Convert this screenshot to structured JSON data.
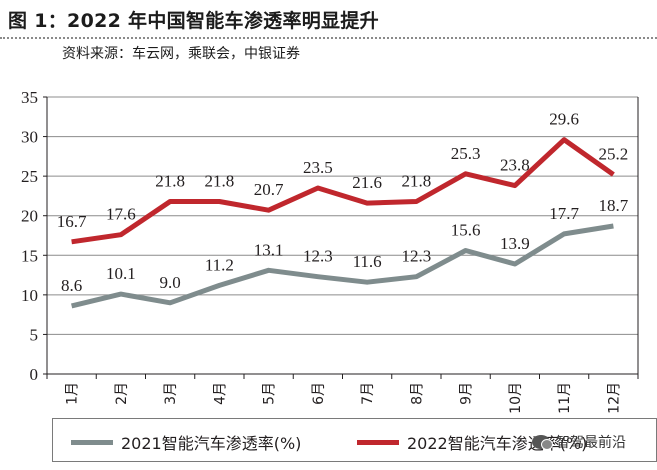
{
  "header": {
    "figure_label": "图 1：",
    "title": "2022 年中国智能车渗透率明显提升",
    "source": "资料来源：车云网，乘联会，中银证券"
  },
  "watermark": {
    "text": "智驾最前沿",
    "icon": "wechat-icon"
  },
  "chart_data": {
    "type": "line",
    "categories": [
      "1月",
      "2月",
      "3月",
      "4月",
      "5月",
      "6月",
      "7月",
      "8月",
      "9月",
      "10月",
      "11月",
      "12月"
    ],
    "ylim": [
      0,
      35
    ],
    "yticks": [
      0,
      5,
      10,
      15,
      20,
      25,
      30,
      35
    ],
    "grid": true,
    "legend_position": "bottom",
    "series": [
      {
        "name": "2021智能汽车渗透率(%)",
        "color": "#7f8c8d",
        "values": [
          8.6,
          10.1,
          9.0,
          11.2,
          13.1,
          12.3,
          11.6,
          12.3,
          15.6,
          13.9,
          17.7,
          18.7
        ],
        "labels": [
          "8.6",
          "10.1",
          "9.0",
          "11.2",
          "13.1",
          "12.3",
          "11.6",
          "12.3",
          "15.6",
          "13.9",
          "17.7",
          "18.7"
        ]
      },
      {
        "name": "2022智能汽车渗透率(%)",
        "color": "#c0272d",
        "values": [
          16.7,
          17.6,
          21.8,
          21.8,
          20.7,
          23.5,
          21.6,
          21.8,
          25.3,
          23.8,
          29.6,
          25.2
        ],
        "labels": [
          "16.7",
          "17.6",
          "21.8",
          "21.8",
          "20.7",
          "23.5",
          "21.6",
          "21.8",
          "25.3",
          "23.8",
          "29.6",
          "25.2"
        ]
      }
    ]
  }
}
